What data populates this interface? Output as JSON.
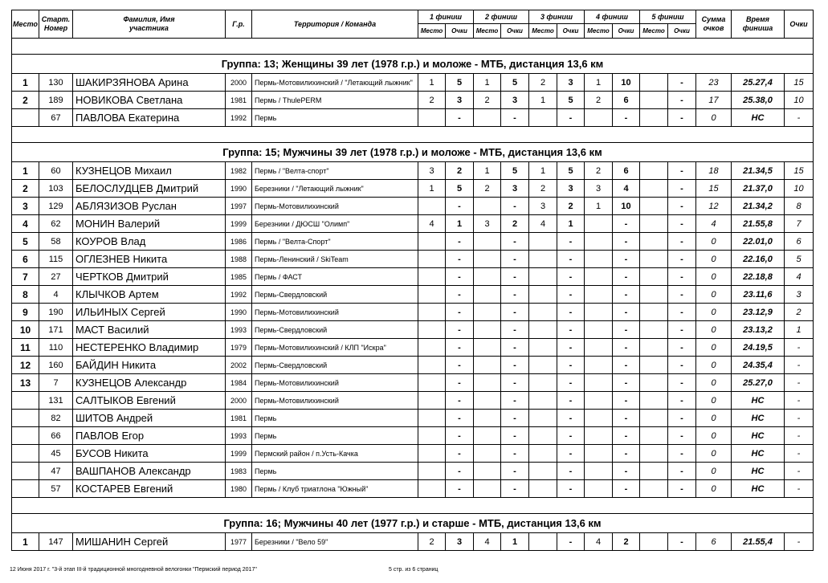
{
  "header": {
    "place": "Место",
    "number": "Старт. Номер",
    "name": "Фамилия, Имя участника",
    "year": "Г.р.",
    "team": "Территория / Команда",
    "finishes": [
      "1 финиш",
      "2 финиш",
      "3 финиш",
      "4 финиш",
      "5 финиш"
    ],
    "finish_sub": [
      "Место",
      "Очки"
    ],
    "sum": "Сумма очков",
    "time": "Время финиша",
    "points": "Очки"
  },
  "groups": [
    {
      "title": "Группа: 13; Женщины 39 лет (1978 г.р.) и моложе - МТБ, дистанция 13,6 км",
      "rows": [
        [
          "1",
          "130",
          "ШАКИРЗЯНОВА Арина",
          "2000",
          "Пермь-Мотовилихинский / \"Летающий лыжник\"",
          "1",
          "5",
          "1",
          "5",
          "2",
          "3",
          "1",
          "10",
          null,
          "-",
          "23",
          "25.27,4",
          "15"
        ],
        [
          "2",
          "189",
          "НОВИКОВА Светлана",
          "1981",
          "Пермь / ThulePERM",
          "2",
          "3",
          "2",
          "3",
          "1",
          "5",
          "2",
          "6",
          null,
          "-",
          "17",
          "25.38,0",
          "10"
        ],
        [
          null,
          "67",
          "ПАВЛОВА Екатерина",
          "1992",
          "Пермь",
          null,
          "-",
          null,
          "-",
          null,
          "-",
          null,
          "-",
          null,
          "-",
          "0",
          "НС",
          "-"
        ]
      ]
    },
    {
      "title": "Группа: 15; Мужчины 39 лет (1978 г.р.) и моложе - МТБ, дистанция 13,6 км",
      "rows": [
        [
          "1",
          "60",
          "КУЗНЕЦОВ Михаил",
          "1982",
          "Пермь / \"Велта-спорт\"",
          "3",
          "2",
          "1",
          "5",
          "1",
          "5",
          "2",
          "6",
          null,
          "-",
          "18",
          "21.34,5",
          "15"
        ],
        [
          "2",
          "103",
          "БЕЛОСЛУДЦЕВ Дмитрий",
          "1990",
          "Березники / \"Летающий лыжник\"",
          "1",
          "5",
          "2",
          "3",
          "2",
          "3",
          "3",
          "4",
          null,
          "-",
          "15",
          "21.37,0",
          "10"
        ],
        [
          "3",
          "129",
          "АБЛЯЗИЗОВ Руслан",
          "1997",
          "Пермь-Мотовилихинский",
          null,
          "-",
          null,
          "-",
          "3",
          "2",
          "1",
          "10",
          null,
          "-",
          "12",
          "21.34,2",
          "8"
        ],
        [
          "4",
          "62",
          "МОНИН Валерий",
          "1999",
          "Березники / ДЮСШ \"Олимп\"",
          "4",
          "1",
          "3",
          "2",
          "4",
          "1",
          null,
          "-",
          null,
          "-",
          "4",
          "21.55,8",
          "7"
        ],
        [
          "5",
          "58",
          "КОУРОВ Влад",
          "1986",
          "Пермь / \"Велта-Спорт\"",
          null,
          "-",
          null,
          "-",
          null,
          "-",
          null,
          "-",
          null,
          "-",
          "0",
          "22.01,0",
          "6"
        ],
        [
          "6",
          "115",
          "ОГЛЕЗНЕВ Никита",
          "1988",
          "Пермь-Ленинский / SkiTeam",
          null,
          "-",
          null,
          "-",
          null,
          "-",
          null,
          "-",
          null,
          "-",
          "0",
          "22.16,0",
          "5"
        ],
        [
          "7",
          "27",
          "ЧЕРТКОВ Дмитрий",
          "1985",
          "Пермь / ФАСТ",
          null,
          "-",
          null,
          "-",
          null,
          "-",
          null,
          "-",
          null,
          "-",
          "0",
          "22.18,8",
          "4"
        ],
        [
          "8",
          "4",
          "КЛЫЧКОВ Артем",
          "1992",
          "Пермь-Свердловский",
          null,
          "-",
          null,
          "-",
          null,
          "-",
          null,
          "-",
          null,
          "-",
          "0",
          "23.11,6",
          "3"
        ],
        [
          "9",
          "190",
          "ИЛЬИНЫХ Сергей",
          "1990",
          "Пермь-Мотовилихинский",
          null,
          "-",
          null,
          "-",
          null,
          "-",
          null,
          "-",
          null,
          "-",
          "0",
          "23.12,9",
          "2"
        ],
        [
          "10",
          "171",
          "МАСТ Василий",
          "1993",
          "Пермь-Свердловский",
          null,
          "-",
          null,
          "-",
          null,
          "-",
          null,
          "-",
          null,
          "-",
          "0",
          "23.13,2",
          "1"
        ],
        [
          "11",
          "110",
          "НЕСТЕРЕНКО Владимир",
          "1979",
          "Пермь-Мотовилихинский / КЛП \"Искра\"",
          null,
          "-",
          null,
          "-",
          null,
          "-",
          null,
          "-",
          null,
          "-",
          "0",
          "24.19,5",
          "-"
        ],
        [
          "12",
          "160",
          "БАЙДИН Никита",
          "2002",
          "Пермь-Свердловский",
          null,
          "-",
          null,
          "-",
          null,
          "-",
          null,
          "-",
          null,
          "-",
          "0",
          "24.35,4",
          "-"
        ],
        [
          "13",
          "7",
          "КУЗНЕЦОВ Александр",
          "1984",
          "Пермь-Мотовилихинский",
          null,
          "-",
          null,
          "-",
          null,
          "-",
          null,
          "-",
          null,
          "-",
          "0",
          "25.27,0",
          "-"
        ],
        [
          null,
          "131",
          "САЛТЫКОВ Евгений",
          "2000",
          "Пермь-Мотовилихинский",
          null,
          "-",
          null,
          "-",
          null,
          "-",
          null,
          "-",
          null,
          "-",
          "0",
          "НС",
          "-"
        ],
        [
          null,
          "82",
          "ШИТОВ Андрей",
          "1981",
          "Пермь",
          null,
          "-",
          null,
          "-",
          null,
          "-",
          null,
          "-",
          null,
          "-",
          "0",
          "НС",
          "-"
        ],
        [
          null,
          "66",
          "ПАВЛОВ Егор",
          "1993",
          "Пермь",
          null,
          "-",
          null,
          "-",
          null,
          "-",
          null,
          "-",
          null,
          "-",
          "0",
          "НС",
          "-"
        ],
        [
          null,
          "45",
          "БУСОВ Никита",
          "1999",
          "Пермский район / п.Усть-Качка",
          null,
          "-",
          null,
          "-",
          null,
          "-",
          null,
          "-",
          null,
          "-",
          "0",
          "НС",
          "-"
        ],
        [
          null,
          "47",
          "ВАШПАНОВ Александр",
          "1983",
          "Пермь",
          null,
          "-",
          null,
          "-",
          null,
          "-",
          null,
          "-",
          null,
          "-",
          "0",
          "НС",
          "-"
        ],
        [
          null,
          "57",
          "КОСТАРЕВ Евгений",
          "1980",
          "Пермь / Клуб триатлона \"Южный\"",
          null,
          "-",
          null,
          "-",
          null,
          "-",
          null,
          "-",
          null,
          "-",
          "0",
          "НС",
          "-"
        ]
      ]
    },
    {
      "title": "Группа: 16; Мужчины 40 лет (1977 г.р.) и старше - МТБ, дистанция 13,6 км",
      "rows": [
        [
          "1",
          "147",
          "МИШАНИН Сергей",
          "1977",
          "Березники / \"Вело 59\"",
          "2",
          "3",
          "4",
          "1",
          null,
          "-",
          "4",
          "2",
          null,
          "-",
          "6",
          "21.55,4",
          "-"
        ]
      ]
    }
  ],
  "footer": {
    "left": "12 Июня 2017 г. \"3-й этап III-й традиционной многодневной велогонки \"Пермский период 2017\"",
    "right": "5 стр. из 6 страниц"
  }
}
